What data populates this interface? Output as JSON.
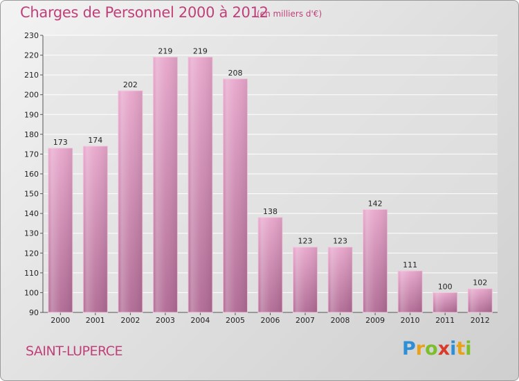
{
  "header": {
    "title": "Charges de Personnel 2000 à 2012",
    "subtitle": "(en milliers d'€)"
  },
  "footer": {
    "commune": "SAINT-LUPERCE",
    "logo_letters": [
      "P",
      "r",
      "o",
      "x",
      "i",
      "t",
      "i"
    ],
    "logo_colors": [
      "#2e8fd6",
      "#e8a21a",
      "#7bbf2a",
      "#d93a2a",
      "#2e8fd6",
      "#e8a21a",
      "#7bbf2a"
    ]
  },
  "colors": {
    "bar": "#d88cb6",
    "bar_dark": "#b06a94",
    "text_accent": "#c0407a"
  },
  "chart_data": {
    "type": "bar",
    "title": "Charges de Personnel 2000 à 2012",
    "subtitle": "(en milliers d'€)",
    "categories": [
      "2000",
      "2001",
      "2002",
      "2003",
      "2004",
      "2005",
      "2006",
      "2007",
      "2008",
      "2009",
      "2010",
      "2011",
      "2012"
    ],
    "values": [
      173,
      174,
      202,
      219,
      219,
      208,
      138,
      123,
      123,
      142,
      111,
      100,
      102
    ],
    "ylim": [
      90,
      230
    ],
    "yticks": [
      90,
      100,
      110,
      120,
      130,
      140,
      150,
      160,
      170,
      180,
      190,
      200,
      210,
      220,
      230
    ],
    "grid": "horizontal",
    "data_labels": true
  }
}
